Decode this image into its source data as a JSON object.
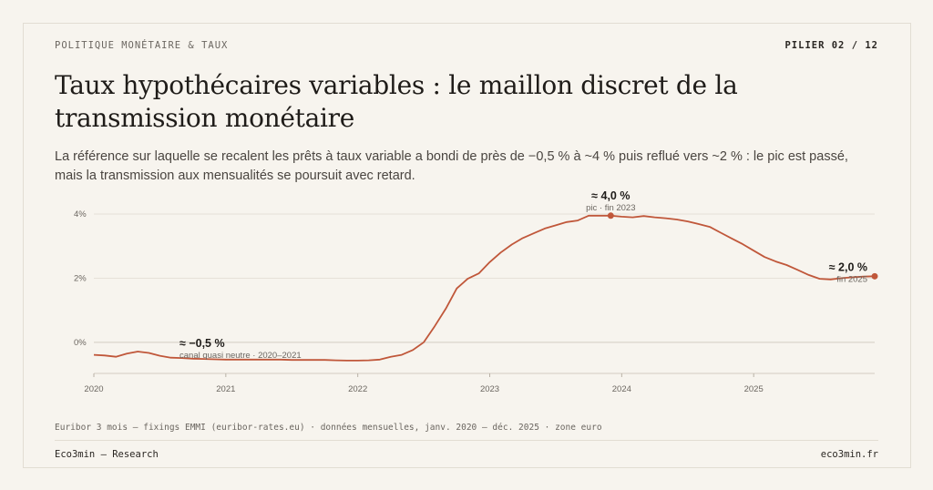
{
  "header": {
    "kicker": "POLITIQUE MONÉTAIRE & TAUX",
    "pillar": "PILIER 02 / 12",
    "title": "Taux hypothécaires variables : le maillon discret de la transmission monétaire",
    "subtitle": "La référence sur laquelle se recalent les prêts à taux variable a bondi de près de −0,5 % à ~4 % puis reflué vers ~2 % : le pic est passé, mais la transmission aux mensualités se poursuit avec retard."
  },
  "chart_data": {
    "type": "line",
    "title": "",
    "xlabel": "",
    "ylabel": "",
    "x_ticks": [
      "2020",
      "2021",
      "2022",
      "2023",
      "2024",
      "2025"
    ],
    "y_ticks": [
      "0%",
      "2%",
      "4%"
    ],
    "ylim": [
      -0.8,
      4.2
    ],
    "xlim": [
      2020.0,
      2025.917
    ],
    "grid": "horizontal",
    "color": "#c0573a",
    "series": [
      {
        "x": [
          2020.0,
          2020.083,
          2020.167,
          2020.25,
          2020.333,
          2020.417,
          2020.5,
          2020.583,
          2020.667,
          2020.75,
          2020.833,
          2020.917,
          2021.0,
          2021.083,
          2021.167,
          2021.25,
          2021.333,
          2021.417,
          2021.5,
          2021.583,
          2021.667,
          2021.75,
          2021.833,
          2021.917,
          2022.0,
          2022.083,
          2022.167,
          2022.25,
          2022.333,
          2022.417,
          2022.5,
          2022.583,
          2022.667,
          2022.75,
          2022.833,
          2022.917,
          2023.0,
          2023.083,
          2023.167,
          2023.25,
          2023.333,
          2023.417,
          2023.5,
          2023.583,
          2023.667,
          2023.75,
          2023.833,
          2023.917,
          2024.0,
          2024.083,
          2024.167,
          2024.25,
          2024.333,
          2024.417,
          2024.5,
          2024.583,
          2024.667,
          2024.75,
          2024.833,
          2024.917,
          2025.0,
          2025.083,
          2025.167,
          2025.25,
          2025.333,
          2025.417,
          2025.5,
          2025.583,
          2025.667,
          2025.75,
          2025.833,
          2025.917
        ],
        "y": [
          -0.39,
          -0.41,
          -0.45,
          -0.35,
          -0.29,
          -0.33,
          -0.42,
          -0.48,
          -0.49,
          -0.51,
          -0.52,
          -0.53,
          -0.54,
          -0.54,
          -0.54,
          -0.54,
          -0.54,
          -0.54,
          -0.55,
          -0.55,
          -0.55,
          -0.55,
          -0.56,
          -0.57,
          -0.57,
          -0.56,
          -0.54,
          -0.45,
          -0.39,
          -0.24,
          0.0,
          0.5,
          1.05,
          1.68,
          1.98,
          2.15,
          2.5,
          2.8,
          3.05,
          3.25,
          3.4,
          3.55,
          3.65,
          3.75,
          3.8,
          3.95,
          3.95,
          3.95,
          3.92,
          3.9,
          3.94,
          3.9,
          3.87,
          3.83,
          3.77,
          3.69,
          3.6,
          3.42,
          3.24,
          3.06,
          2.86,
          2.66,
          2.52,
          2.41,
          2.26,
          2.1,
          1.98,
          1.96,
          2.0,
          2.03,
          2.05,
          2.06
        ]
      }
    ],
    "annotations": [
      {
        "label": "≈ −0,5 %",
        "sublabel": "canal quasi neutre · 2020–2021",
        "x": 2020.667,
        "y": -0.5,
        "marker": false
      },
      {
        "label": "≈ 4,0 %",
        "sublabel": "pic · fin 2023",
        "x": 2023.917,
        "y": 3.95,
        "marker": true
      },
      {
        "label": "≈ 2,0 %",
        "sublabel": "fin 2025",
        "x": 2025.917,
        "y": 2.06,
        "marker": true
      }
    ]
  },
  "footer": {
    "source": "Euribor 3 mois — fixings EMMI (euribor-rates.eu) · données mensuelles, janv. 2020 – déc. 2025 · zone euro",
    "brand": "Eco3min — Research",
    "site": "eco3min.fr"
  }
}
